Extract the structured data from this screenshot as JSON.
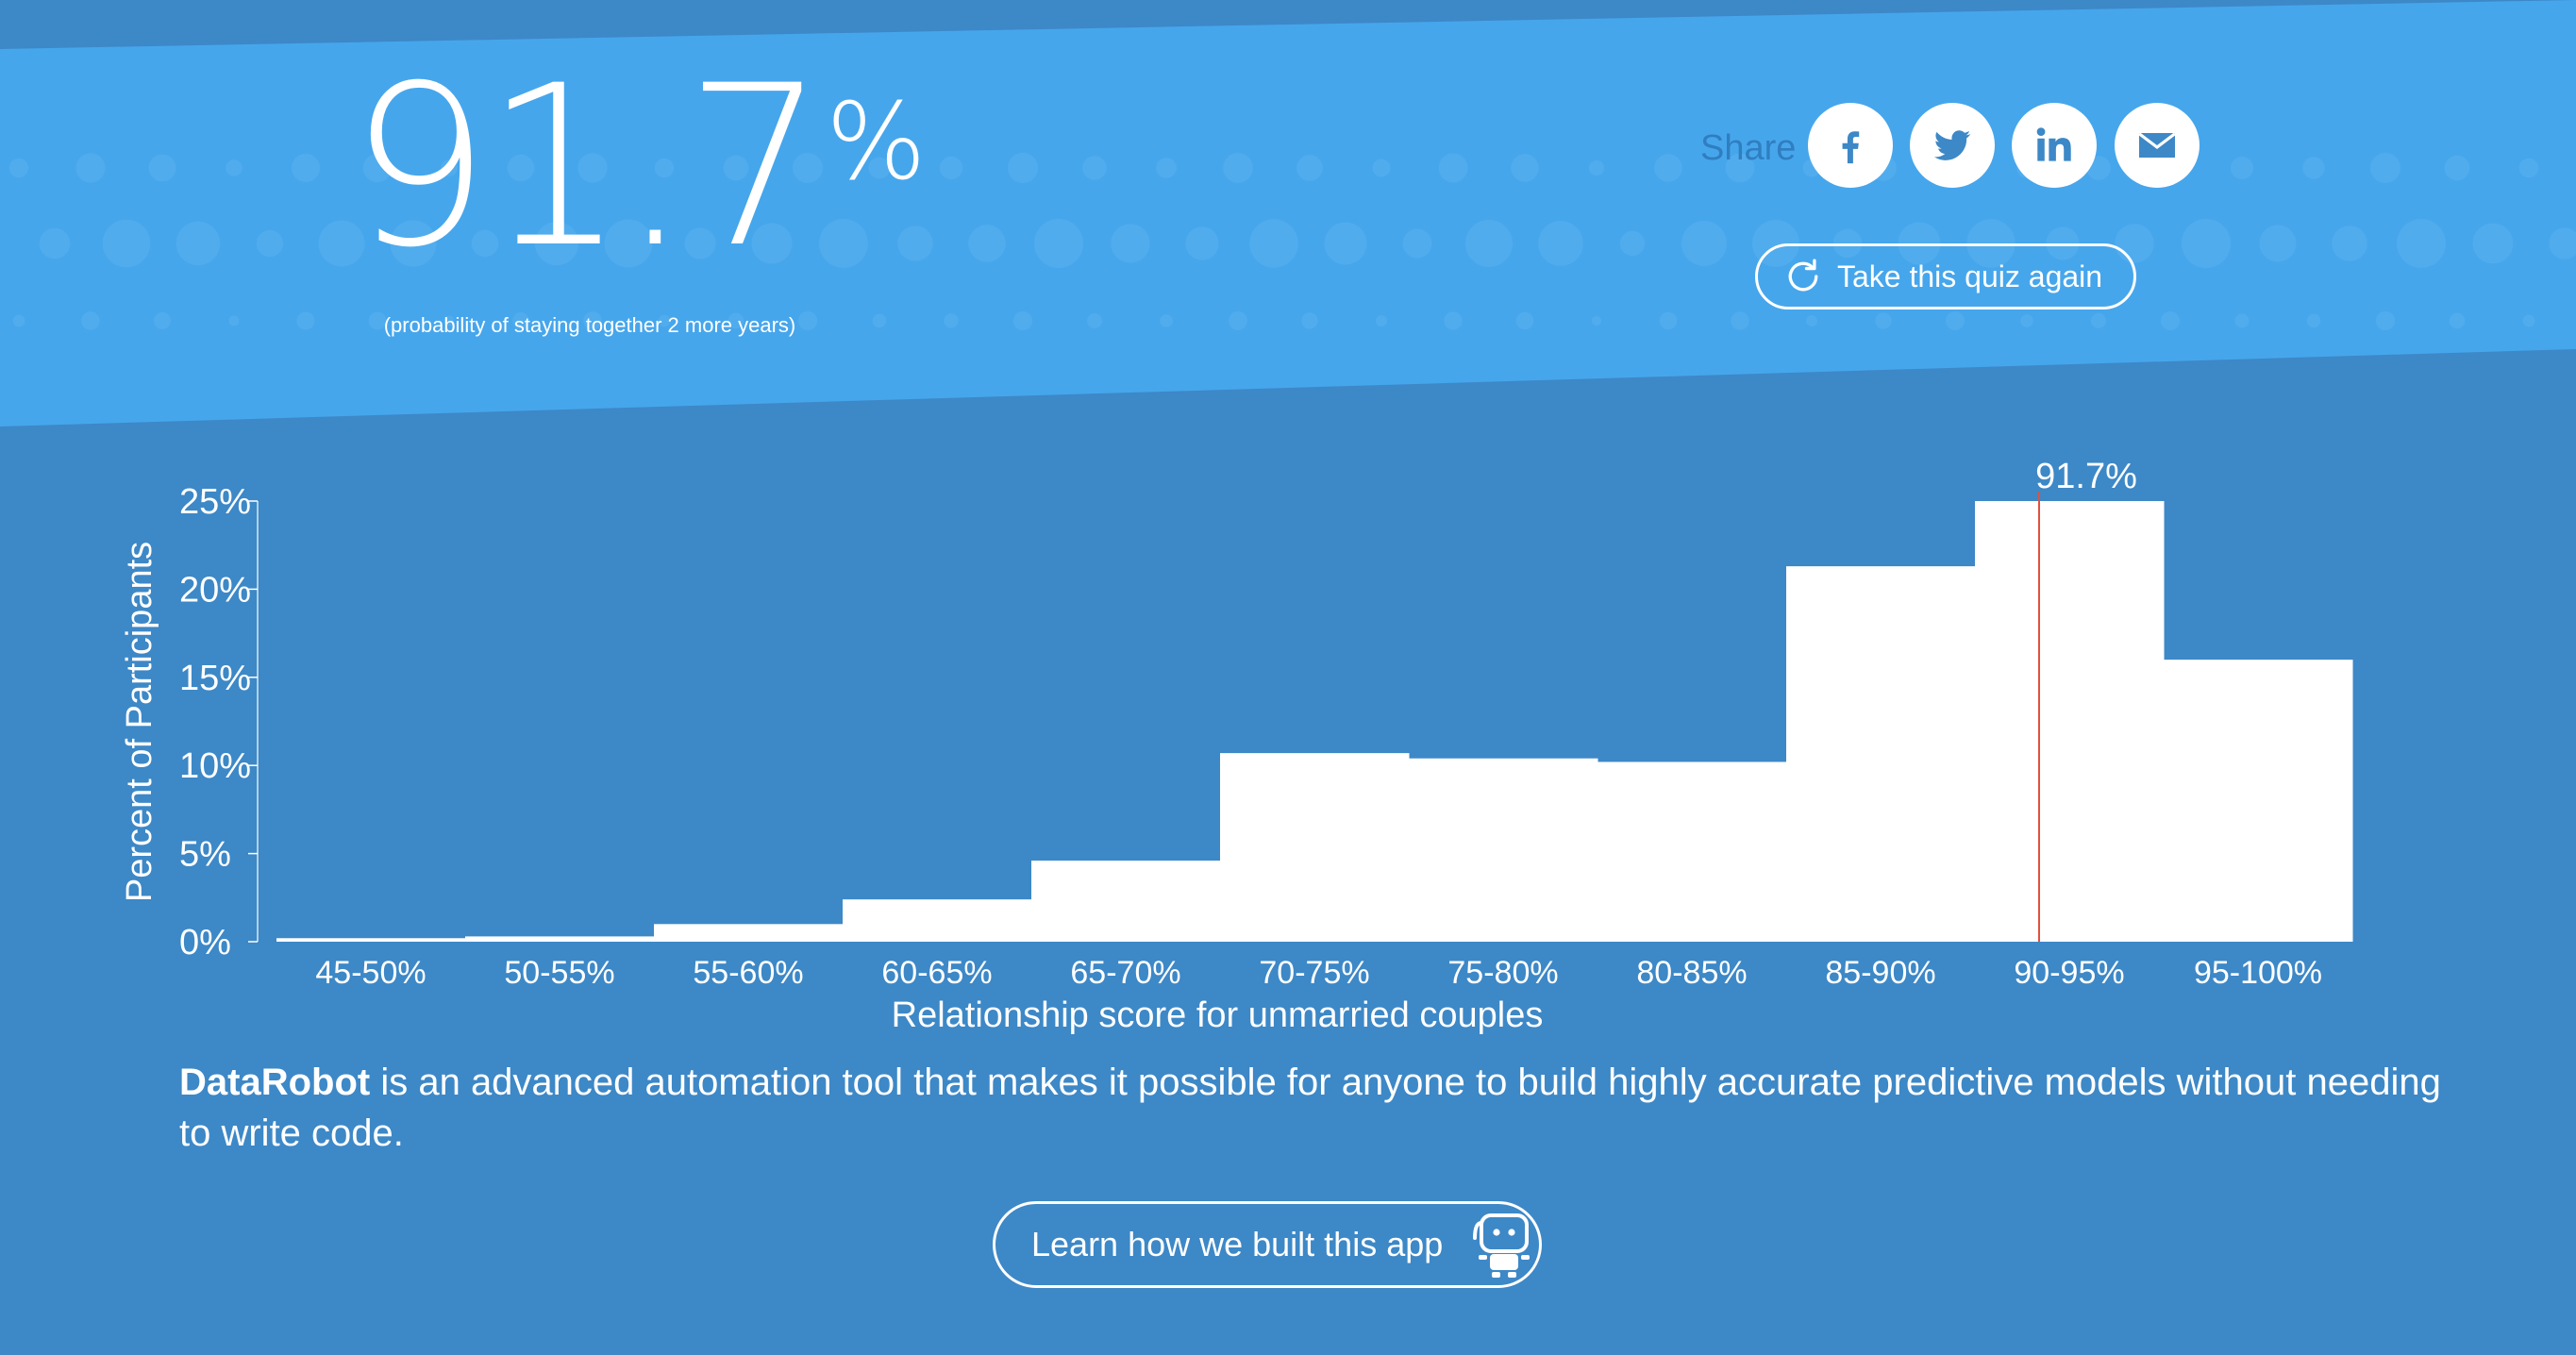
{
  "result": {
    "value": "91.7",
    "percent_sign": "%",
    "caption": "(probability of staying together 2 more years)"
  },
  "share": {
    "label": "Share",
    "buttons": [
      {
        "name": "facebook",
        "icon": "facebook-icon"
      },
      {
        "name": "twitter",
        "icon": "twitter-icon"
      },
      {
        "name": "linkedin",
        "icon": "linkedin-icon"
      },
      {
        "name": "email",
        "icon": "mail-icon"
      }
    ]
  },
  "quiz_again": {
    "label": "Take this quiz again",
    "icon": "refresh-icon"
  },
  "colors": {
    "page_background": "#3d88c7",
    "banner": "#46a6ec",
    "bars": "#ffffff",
    "marker": "#e2503e"
  },
  "chart_data": {
    "type": "bar",
    "categories": [
      "45-50%",
      "50-55%",
      "55-60%",
      "60-65%",
      "65-70%",
      "70-75%",
      "75-80%",
      "80-85%",
      "85-90%",
      "90-95%",
      "95-100%"
    ],
    "values": [
      0.2,
      0.3,
      1.0,
      2.4,
      4.6,
      10.7,
      10.4,
      10.2,
      21.3,
      25.0,
      16.0
    ],
    "ylabel": "Percent of Participants",
    "xlabel": "Relationship score for unmarried couples",
    "yticks": [
      "0%",
      "5%",
      "10%",
      "15%",
      "20%",
      "25%"
    ],
    "ylim": [
      0,
      25
    ],
    "marker": {
      "value": 91.7,
      "label": "91.7%"
    },
    "grid": false
  },
  "description": {
    "brand": "DataRobot",
    "text": " is an advanced automation tool that makes it possible for anyone to build highly accurate predictive models without needing to write code."
  },
  "learn_button": {
    "label": "Learn how we built this app",
    "icon": "robot-icon"
  }
}
